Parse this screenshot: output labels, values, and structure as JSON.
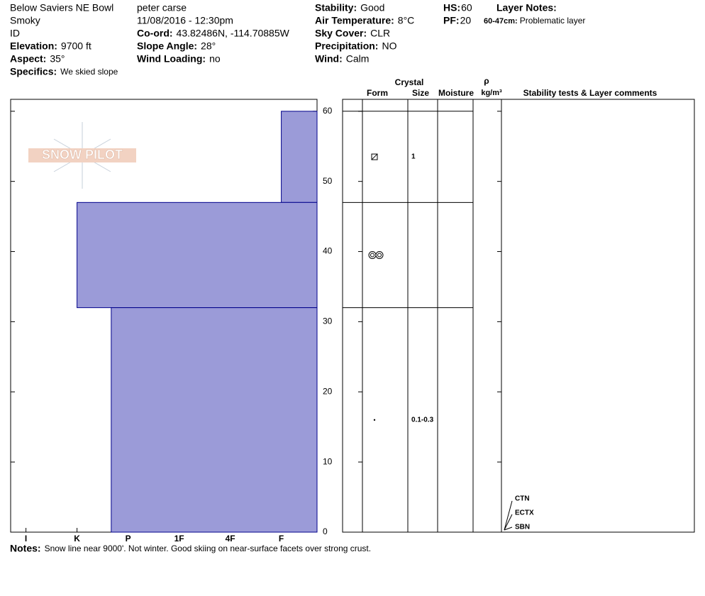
{
  "header": {
    "columns": [
      [
        {
          "value": "Below Saviers NE Bowl"
        },
        {
          "value": "Smoky"
        },
        {
          "value": "ID"
        },
        {
          "label": "Elevation:",
          "value": "9700 ft"
        },
        {
          "label": "Aspect:",
          "value": "35°"
        },
        {
          "label": "Specifics:",
          "value": "We skied slope"
        }
      ],
      [
        {
          "value": "peter carse"
        },
        {
          "value": "11/08/2016 - 12:30pm"
        },
        {
          "label": "Co-ord:",
          "value": "43.82486N, -114.70885W"
        },
        {
          "label": "Slope Angle:",
          "value": "28°"
        },
        {
          "label": "Wind Loading:",
          "value": "no"
        }
      ],
      [
        {
          "label": "Stability:",
          "value": "Good"
        },
        {
          "label": "Air Temperature:",
          "value": "8°C"
        },
        {
          "label": "Sky Cover:",
          "value": "CLR"
        },
        {
          "label": "Precipitation:",
          "value": "NO"
        },
        {
          "label": "Wind:",
          "value": "Calm"
        }
      ],
      [
        {
          "label": "HS:",
          "value": 60
        },
        {
          "label": "PF:",
          "value": 20
        }
      ]
    ],
    "layer_notes": {
      "label": "Layer Notes:",
      "items": [
        {
          "label": "60-47cm:",
          "value": "Problematic layer"
        }
      ]
    }
  },
  "logo": "SNOW PILOT",
  "chart_data": {
    "type": "hardness-profile",
    "ylim": [
      0,
      61.7
    ],
    "yticks": [
      0,
      10,
      20,
      30,
      40,
      50,
      60
    ],
    "xlim": [
      6.3,
      0.3
    ],
    "xticks": [
      {
        "value": 6,
        "label": "I"
      },
      {
        "value": 5,
        "label": "K"
      },
      {
        "value": 4,
        "label": "P"
      },
      {
        "value": 3,
        "label": "1F"
      },
      {
        "value": 2,
        "label": "4F"
      },
      {
        "value": 1,
        "label": "F"
      }
    ],
    "color": "#9b9bd8",
    "layers": [
      {
        "top": 60,
        "bottom": 47,
        "hardness": 1,
        "size": 1
      },
      {
        "top": 47,
        "bottom": 32,
        "hardness": 5
      },
      {
        "top": 32,
        "bottom": 0,
        "hardness": 4.33,
        "size": "0.1-0.3"
      }
    ],
    "columns": {
      "crystal": "Crystal",
      "form": "Form",
      "size": "Size",
      "moisture": "Moisture",
      "rho": "ρ",
      "density_unit": "kg/m³",
      "comments": "Stability tests & Layer comments"
    },
    "tests": [
      "CTN",
      "ECTX",
      "SBN"
    ]
  },
  "notes": {
    "label": "Notes:",
    "value": "Snow line near 9000'. Not winter. Good skiing on near-surface facets over strong crust."
  }
}
